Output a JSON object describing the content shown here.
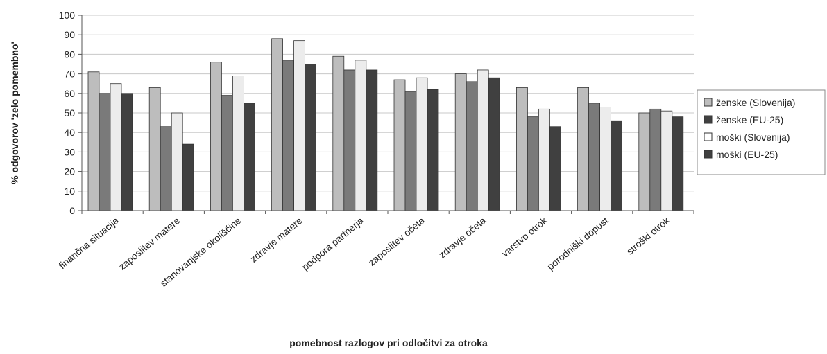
{
  "chart_data": {
    "type": "bar",
    "title": "",
    "xlabel": "pomebnost razlogov pri odločitvi za otroka",
    "ylabel": "% odgovorov 'zelo pomembno'",
    "ylim": [
      0,
      100
    ],
    "yticks": [
      0,
      10,
      20,
      30,
      40,
      50,
      60,
      70,
      80,
      90,
      100
    ],
    "grid": true,
    "legend_position": "right",
    "categories": [
      "finančna situacija",
      "zaposlitev matere",
      "stanovanjske okoliščine",
      "zdravje matere",
      "podpora partnerja",
      "zaposlitev očeta",
      "zdravje očeta",
      "varstvo otrok",
      "porodniški dopust",
      "stroški otrok"
    ],
    "series": [
      {
        "name": "ženske (Slovenija)",
        "color": "#bdbdbd",
        "values": [
          71,
          63,
          76,
          88,
          79,
          67,
          70,
          63,
          63,
          50
        ]
      },
      {
        "name": "ženske (EU-25)",
        "color": "#7a7a7a",
        "values": [
          60,
          43,
          59,
          77,
          72,
          61,
          66,
          48,
          55,
          52
        ]
      },
      {
        "name": "moški (Slovenija)",
        "color": "#ececec",
        "values": [
          65,
          50,
          69,
          87,
          77,
          68,
          72,
          52,
          53,
          51
        ]
      },
      {
        "name": "moški (EU-25)",
        "color": "#404040",
        "values": [
          60,
          34,
          55,
          75,
          72,
          62,
          68,
          43,
          46,
          48
        ]
      }
    ],
    "legend_colors": [
      "#bdbdbd",
      "#404040",
      "#ffffff",
      "#404040"
    ]
  }
}
